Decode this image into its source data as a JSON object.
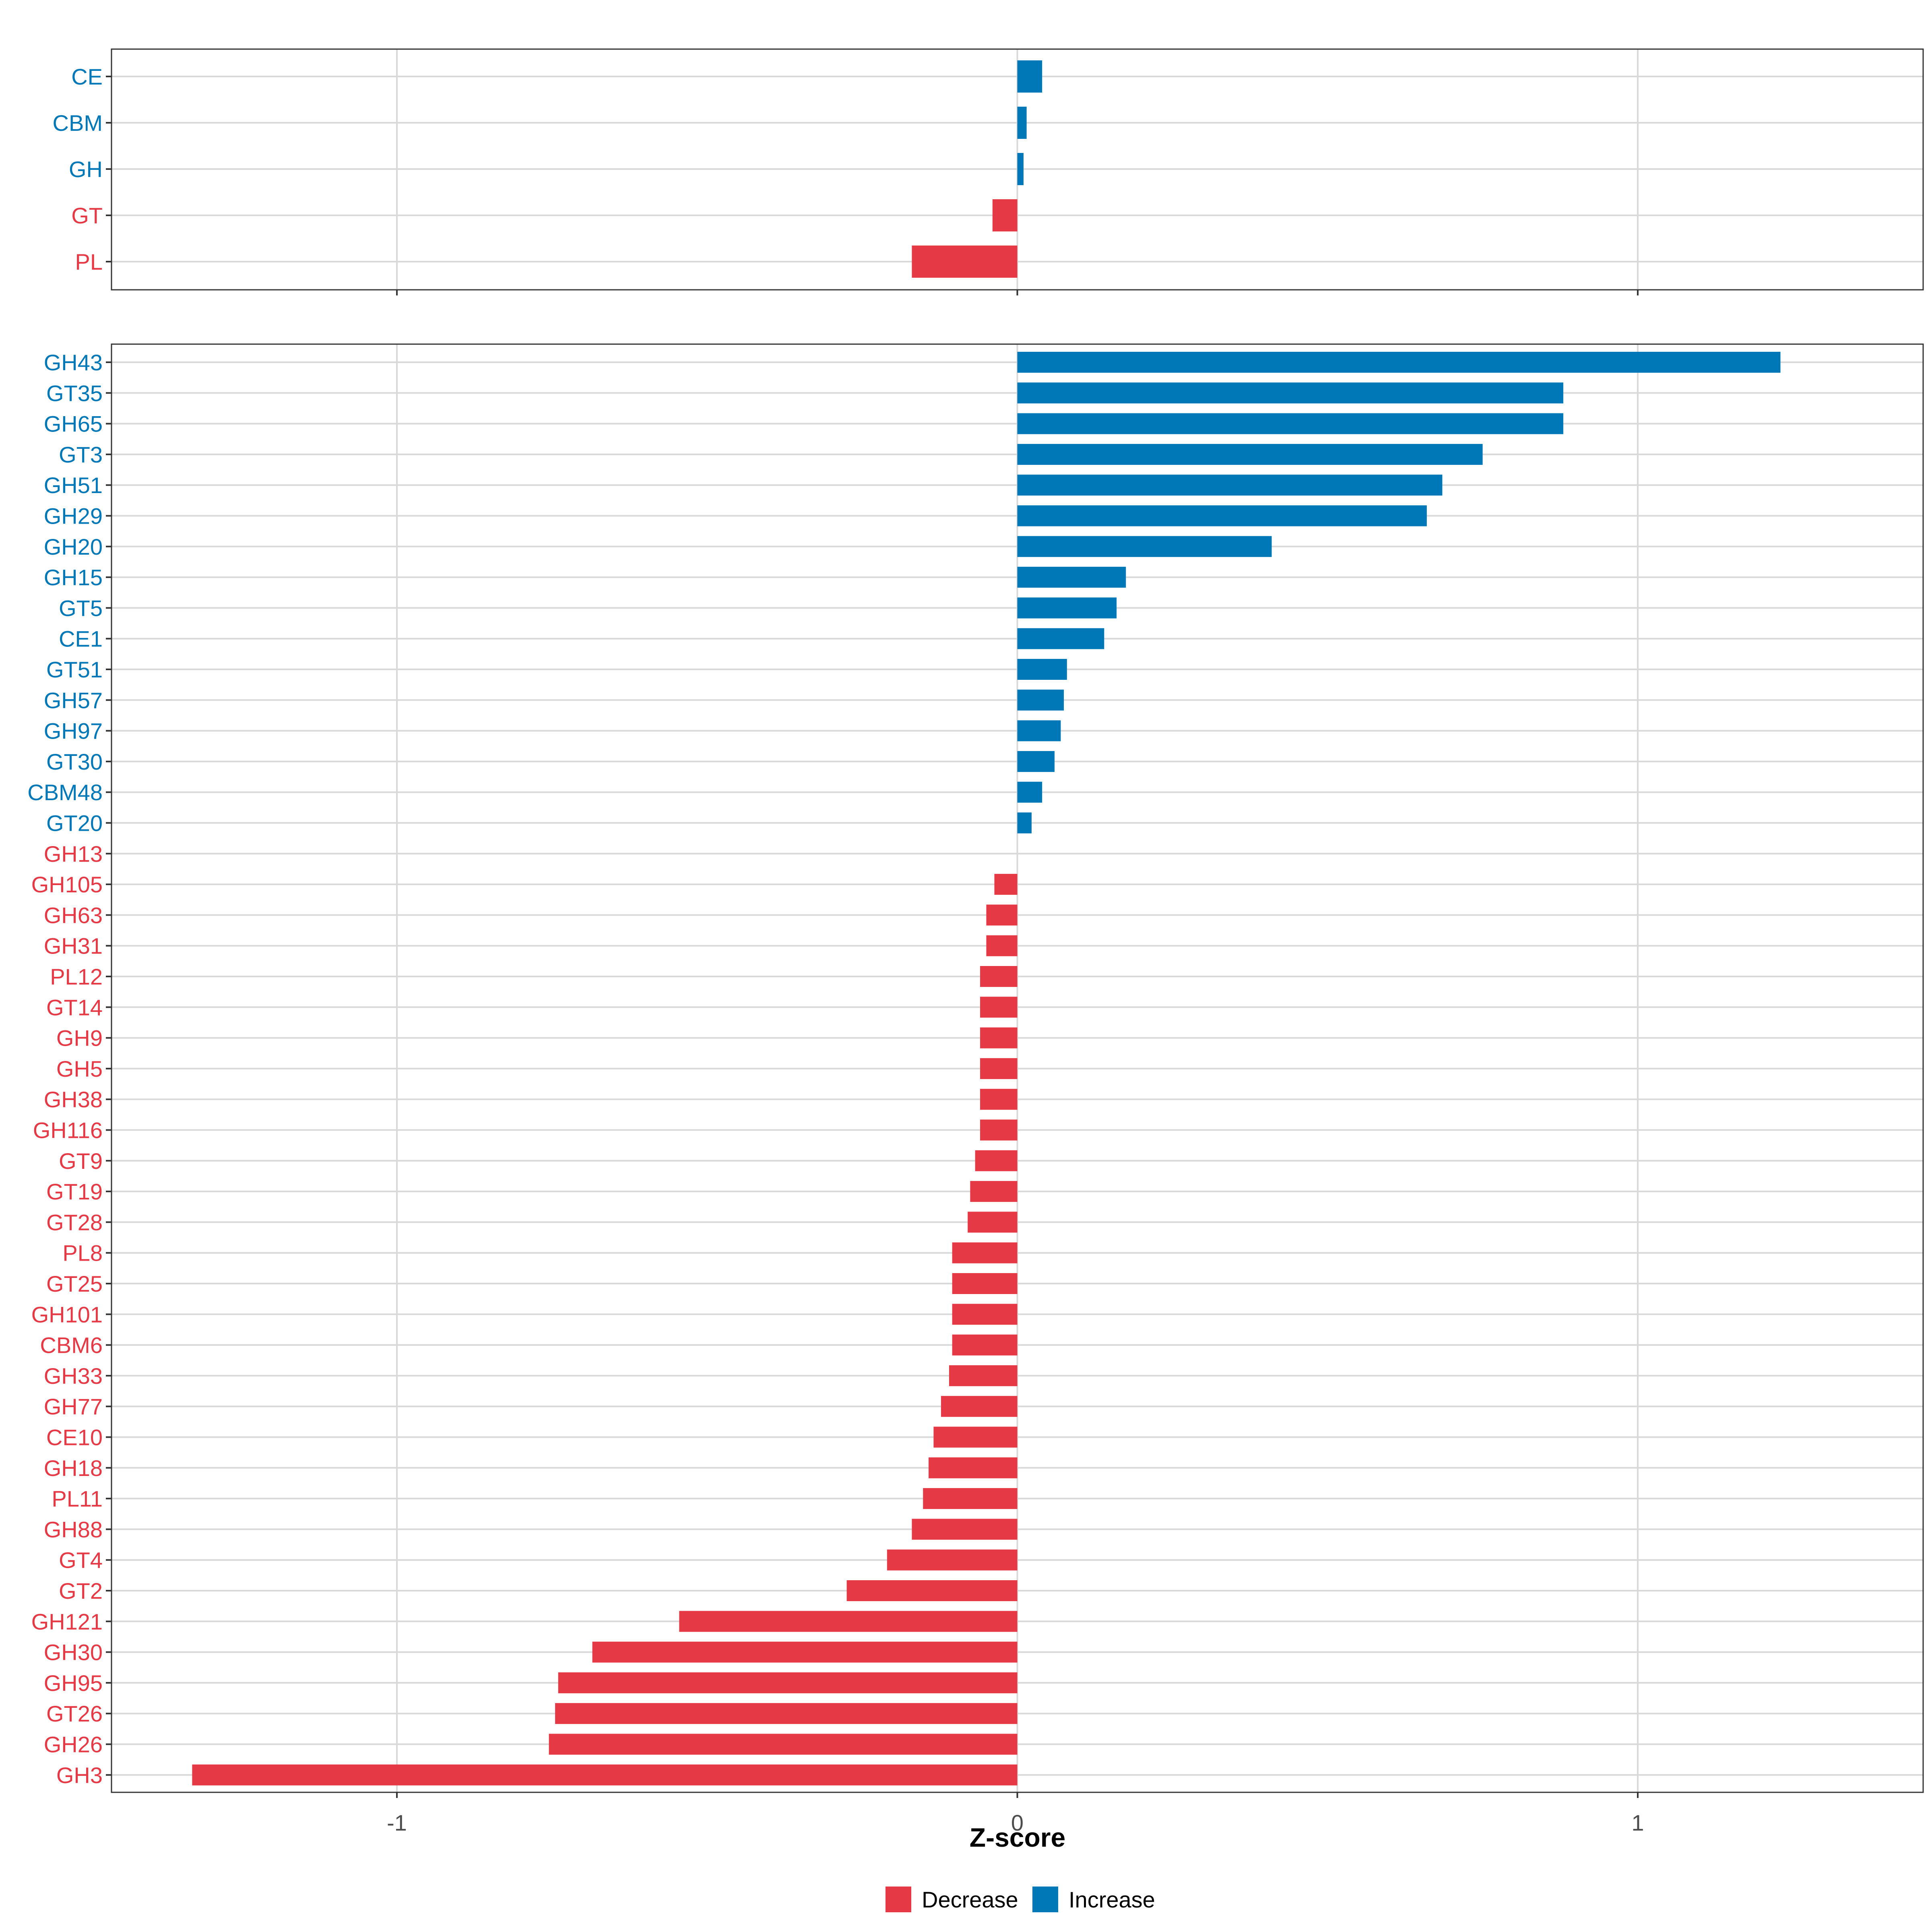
{
  "colors": {
    "decrease": "#E63946",
    "increase": "#0077B6",
    "grid": "#d9d9d9",
    "border": "#333333"
  },
  "chart_data": [
    {
      "type": "bar",
      "orientation": "horizontal",
      "panel": "top",
      "categories": [
        "CE",
        "CBM",
        "GH",
        "GT",
        "PL"
      ],
      "values": [
        0.04,
        0.015,
        0.01,
        -0.04,
        -0.17
      ],
      "directions": [
        "Increase",
        "Increase",
        "Increase",
        "Decrease",
        "Decrease"
      ],
      "xlim": [
        -1.46,
        1.46
      ],
      "xticks": [
        -1,
        0,
        1
      ],
      "grid": true
    },
    {
      "type": "bar",
      "orientation": "horizontal",
      "panel": "bottom",
      "categories": [
        "GH43",
        "GT35",
        "GH65",
        "GT3",
        "GH51",
        "GH29",
        "GH20",
        "GH15",
        "GT5",
        "CE1",
        "GT51",
        "GH57",
        "GH97",
        "GT30",
        "CBM48",
        "GT20",
        "GH13",
        "GH105",
        "GH63",
        "GH31",
        "PL12",
        "GT14",
        "GH9",
        "GH5",
        "GH38",
        "GH116",
        "GT9",
        "GT19",
        "GT28",
        "PL8",
        "GT25",
        "GH101",
        "CBM6",
        "GH33",
        "GH77",
        "CE10",
        "GH18",
        "PL11",
        "GH88",
        "GT4",
        "GT2",
        "GH121",
        "GH30",
        "GH95",
        "GT26",
        "GH26",
        "GH3"
      ],
      "values": [
        1.23,
        0.88,
        0.88,
        0.75,
        0.685,
        0.66,
        0.41,
        0.175,
        0.16,
        0.14,
        0.08,
        0.075,
        0.07,
        0.06,
        0.04,
        0.023,
        0.0,
        -0.037,
        -0.05,
        -0.05,
        -0.06,
        -0.06,
        -0.06,
        -0.06,
        -0.06,
        -0.06,
        -0.068,
        -0.076,
        -0.08,
        -0.105,
        -0.105,
        -0.105,
        -0.105,
        -0.11,
        -0.123,
        -0.135,
        -0.143,
        -0.152,
        -0.17,
        -0.21,
        -0.275,
        -0.545,
        -0.685,
        -0.74,
        -0.745,
        -0.755,
        -1.33
      ],
      "directions": [
        "Increase",
        "Increase",
        "Increase",
        "Increase",
        "Increase",
        "Increase",
        "Increase",
        "Increase",
        "Increase",
        "Increase",
        "Increase",
        "Increase",
        "Increase",
        "Increase",
        "Increase",
        "Increase",
        "Decrease",
        "Decrease",
        "Decrease",
        "Decrease",
        "Decrease",
        "Decrease",
        "Decrease",
        "Decrease",
        "Decrease",
        "Decrease",
        "Decrease",
        "Decrease",
        "Decrease",
        "Decrease",
        "Decrease",
        "Decrease",
        "Decrease",
        "Decrease",
        "Decrease",
        "Decrease",
        "Decrease",
        "Decrease",
        "Decrease",
        "Decrease",
        "Decrease",
        "Decrease",
        "Decrease",
        "Decrease",
        "Decrease",
        "Decrease",
        "Decrease"
      ],
      "xlim": [
        -1.46,
        1.46
      ],
      "xticks": [
        -1,
        0,
        1
      ],
      "xtick_labels": [
        "-1",
        "0",
        "1"
      ],
      "xlabel": "Z-score",
      "grid": true
    }
  ],
  "legend": {
    "position": "bottom",
    "items": [
      {
        "label": "Decrease",
        "key": "decrease"
      },
      {
        "label": "Increase",
        "key": "increase"
      }
    ]
  }
}
